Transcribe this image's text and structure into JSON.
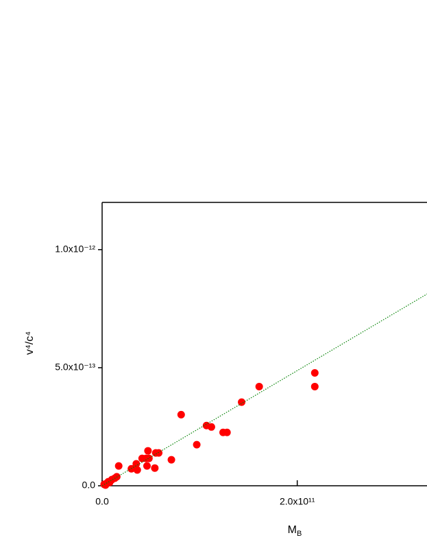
{
  "chart_data": {
    "type": "scatter",
    "x_label": {
      "text": "M",
      "sub": "B"
    },
    "y_label": "v⁴/c⁴",
    "xlim": [
      0,
      333000000000.0
    ],
    "ylim": [
      0,
      1.2e-12
    ],
    "xticks": [
      {
        "value": 0,
        "label": "0.0"
      },
      {
        "value": 200000000000.0,
        "label": "2.0x10¹¹"
      }
    ],
    "yticks": [
      {
        "value": 0,
        "label": "0.0"
      },
      {
        "value": 5e-13,
        "label": "5.0x10⁻¹³"
      },
      {
        "value": 1e-12,
        "label": "1.0x10⁻¹²"
      }
    ],
    "series": [
      {
        "type": "scatter",
        "color": "#ff0000",
        "x": [
          218000000000.0,
          218000000000.0,
          161000000000.0,
          143000000000.0,
          81000000000.0,
          107000000000.0,
          112000000000.0,
          124000000000.0,
          128000000000.0,
          97000000000.0,
          47000000000.0,
          55000000000.0,
          58000000000.0,
          17000000000.0,
          71000000000.0,
          41000000000.0,
          45000000000.0,
          48000000000.0,
          46000000000.0,
          35000000000.0,
          30000000000.0,
          36000000000.0,
          54000000000.0,
          13000000000.0,
          15000000000.0,
          10000000000.0,
          6300000000.0,
          4200000000.0,
          2100000000.0,
          7700000000.0,
          3500000000.0
        ],
        "values": [
          4.78e-13,
          4.2e-13,
          4.2e-13,
          3.54e-13,
          3.01e-13,
          2.55e-13,
          2.49e-13,
          2.26e-13,
          2.26e-13,
          1.74e-13,
          1.48e-13,
          1.39e-13,
          1.39e-13,
          8.4e-14,
          1.1e-13,
          1.16e-13,
          1.16e-13,
          1.16e-13,
          8.4e-14,
          9.3e-14,
          7.2e-14,
          6.7e-14,
          7.5e-14,
          3.2e-14,
          3.8e-14,
          2.6e-14,
          1.7e-14,
          9e-15,
          6e-15,
          1.4e-14,
          3e-15
        ]
      },
      {
        "type": "line",
        "color": "#008000",
        "dash": "dotted",
        "x": [
          0,
          333000000000.0
        ],
        "values": [
          0,
          8.12e-13
        ]
      }
    ]
  }
}
